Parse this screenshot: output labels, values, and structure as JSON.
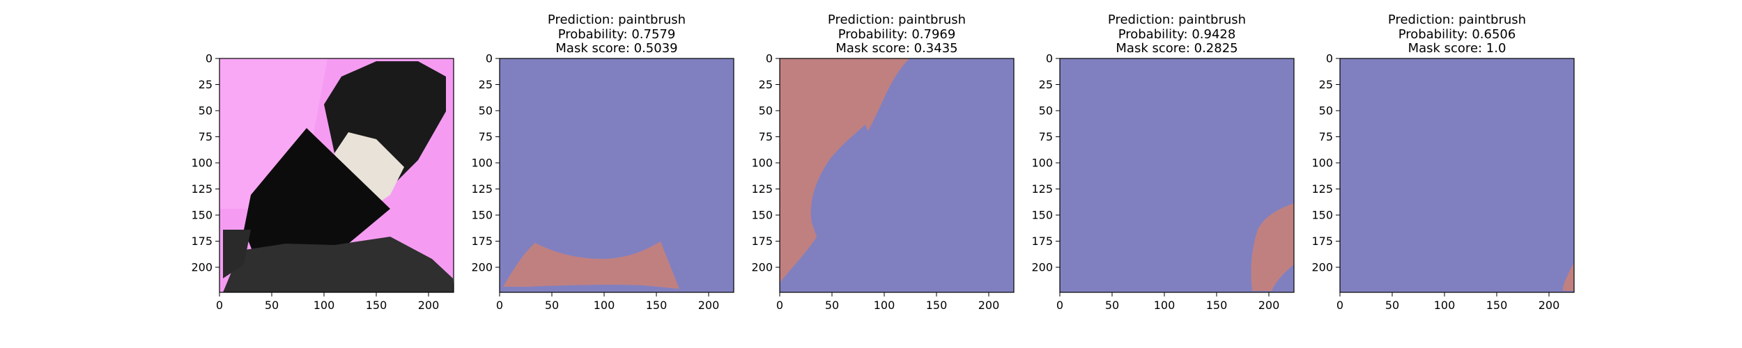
{
  "panels": [
    {
      "type": "image",
      "title": null,
      "background_color": "#f59cf2",
      "image_description_colors": {
        "brush_head": "#111111",
        "bristles_light": "#e7e2dc",
        "base": "#2e2e2e"
      }
    },
    {
      "type": "mask",
      "prediction": "Prediction: paintbrush",
      "probability": "Probability: 0.7579",
      "mask_score": "Mask score: 0.5039"
    },
    {
      "type": "mask",
      "prediction": "Prediction: paintbrush",
      "probability": "Probability: 0.7969",
      "mask_score": "Mask score: 0.3435"
    },
    {
      "type": "mask",
      "prediction": "Prediction: paintbrush",
      "probability": "Probability: 0.9428",
      "mask_score": "Mask score: 0.2825"
    },
    {
      "type": "mask",
      "prediction": "Prediction: paintbrush",
      "probability": "Probability: 0.6506",
      "mask_score": "Mask score: 1.0"
    }
  ],
  "axes": {
    "x_ticks": [
      "0",
      "50",
      "100",
      "150",
      "200"
    ],
    "y_ticks": [
      "0",
      "25",
      "50",
      "75",
      "100",
      "125",
      "150",
      "175",
      "200"
    ],
    "x_tick_values": [
      0,
      50,
      100,
      150,
      200
    ],
    "y_tick_values": [
      0,
      25,
      50,
      75,
      100,
      125,
      150,
      175,
      200
    ],
    "range": [
      0,
      224
    ]
  },
  "colors": {
    "mask_background": "#8080c0",
    "mask_foreground": "#c08080",
    "image_bg": "#f59cf2"
  }
}
